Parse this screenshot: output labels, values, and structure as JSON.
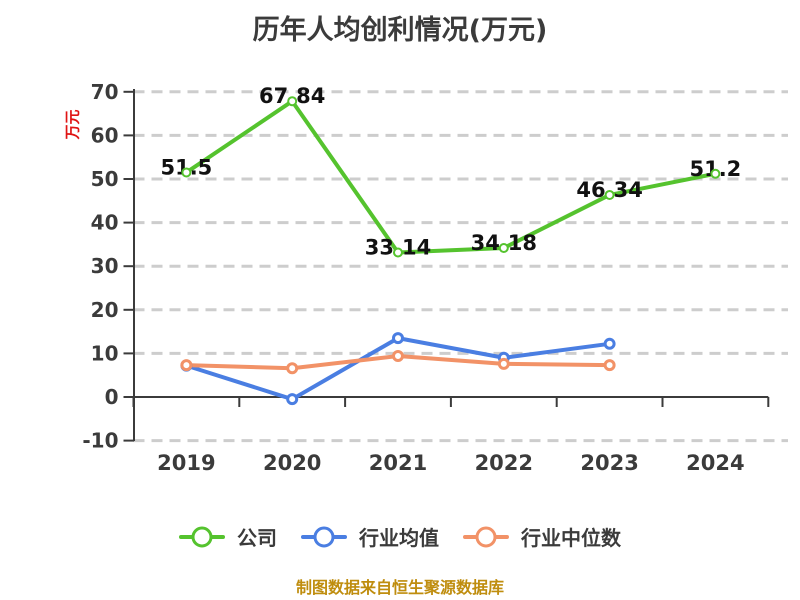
{
  "title": {
    "text": "历年人均创利情况(万元)",
    "color": "#3b3b3b"
  },
  "y_axis_label": {
    "text": "万元",
    "color": "#e01414"
  },
  "source_note": {
    "text": "制图数据来自恒生聚源数据库",
    "color": "#bf8d0e"
  },
  "chart_data": {
    "type": "line",
    "title": "历年人均创利情况(万元)",
    "ylabel": "万元",
    "categories": [
      "2019",
      "2020",
      "2021",
      "2022",
      "2023",
      "2024"
    ],
    "y_ticks": [
      70,
      60,
      50,
      40,
      30,
      20,
      10,
      0,
      -10
    ],
    "ylim": [
      -10,
      70
    ],
    "grid": "horizontal-dashed",
    "grid_color": "#cdcdcd",
    "axis_color": "#3b3b3b",
    "tick_label_color": "#3b3b3b",
    "data_label_color": "#111111",
    "legend_position": "bottom",
    "series": [
      {
        "name": "公司",
        "color": "#55c32e",
        "marker": "circle-white-fill",
        "values": [
          51.5,
          67.84,
          33.14,
          34.18,
          46.34,
          51.2
        ],
        "point_labels": [
          "51.5",
          "67.84",
          "33.14",
          "34.18",
          "46.34",
          "51.2"
        ]
      },
      {
        "name": "行业均值",
        "color": "#4a7ee2",
        "marker": "circle-white-fill",
        "values": [
          7.2,
          -0.5,
          13.5,
          9.0,
          12.2
        ],
        "point_labels": []
      },
      {
        "name": "行业中位数",
        "color": "#f29267",
        "marker": "circle-white-fill",
        "values": [
          7.3,
          6.6,
          9.4,
          7.6,
          7.3
        ],
        "point_labels": []
      }
    ]
  }
}
